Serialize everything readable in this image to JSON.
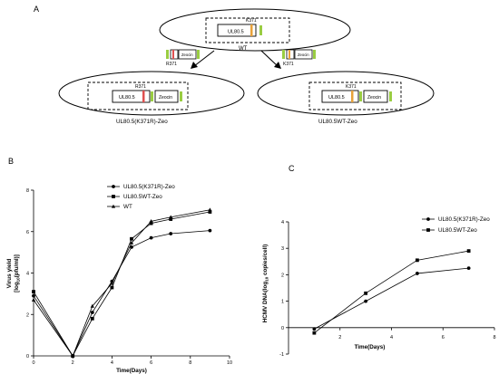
{
  "panel_a": {
    "label": "A",
    "wt": {
      "gene_label": "UL80.5",
      "site_label": "K371",
      "name": "WT"
    },
    "fragment_left": {
      "site_label": "R371",
      "zeo_label": "Zeocin"
    },
    "fragment_right": {
      "site_label": "K371",
      "zeo_label": "Zeocin"
    },
    "construct_left": {
      "gene_label": "UL80.5",
      "site_label": "R371",
      "zeo_label": "Zeocin",
      "name": "UL80.5(K371R)-Zeo"
    },
    "construct_right": {
      "gene_label": "UL80.5",
      "site_label": "K371",
      "zeo_label": "Zeocin",
      "name": "UL80.5WT-Zeo"
    }
  },
  "panel_b": {
    "label": "B"
  },
  "panel_c": {
    "label": "C"
  },
  "chart_data": [
    {
      "type": "line",
      "panel": "B",
      "xlabel": "Time(Days)",
      "ylabel_line1": "Virus yield",
      "ylabel_line2_prefix": "[log",
      "ylabel_line2_sub": "10",
      "ylabel_line2_suffix": "(pfu/ml)]",
      "xlim": [
        0,
        10
      ],
      "ylim": [
        0,
        8
      ],
      "xticks": [
        0,
        2,
        4,
        6,
        8,
        10
      ],
      "yticks": [
        0,
        2,
        4,
        6,
        8
      ],
      "legend_position": "top-left",
      "x": [
        0,
        2,
        3,
        4,
        5,
        6,
        7,
        9
      ],
      "series": [
        {
          "name": "UL80.5(K371R)-Zeo",
          "marker": "circle",
          "values": [
            2.9,
            0,
            2.1,
            3.6,
            5.25,
            5.7,
            5.9,
            6.05
          ]
        },
        {
          "name": "UL80.5WT-Zeo",
          "marker": "square",
          "values": [
            3.1,
            0,
            1.8,
            3.3,
            5.65,
            6.4,
            6.6,
            6.95
          ]
        },
        {
          "name": "WT",
          "marker": "triangle",
          "values": [
            2.7,
            0,
            2.4,
            3.5,
            5.45,
            6.5,
            6.7,
            7.05
          ]
        }
      ]
    },
    {
      "type": "line",
      "panel": "C",
      "xlabel": "Time(Days)",
      "ylabel_prefix": "HCMV DNA(log",
      "ylabel_sub": "10",
      "ylabel_suffix": " copies/cell)",
      "xlim": [
        0,
        8
      ],
      "ylim": [
        -1,
        4
      ],
      "xticks": [
        2,
        4,
        6,
        8
      ],
      "yticks": [
        -1,
        0,
        1,
        2,
        3,
        4
      ],
      "legend_position": "top-left",
      "x": [
        1,
        3,
        5,
        7
      ],
      "series": [
        {
          "name": "UL80.5(K371R)-Zeo",
          "marker": "circle",
          "values": [
            -0.05,
            1.0,
            2.05,
            2.25
          ]
        },
        {
          "name": "UL80.5WT-Zeo",
          "marker": "square",
          "values": [
            -0.2,
            1.3,
            2.55,
            2.9
          ]
        }
      ]
    }
  ]
}
